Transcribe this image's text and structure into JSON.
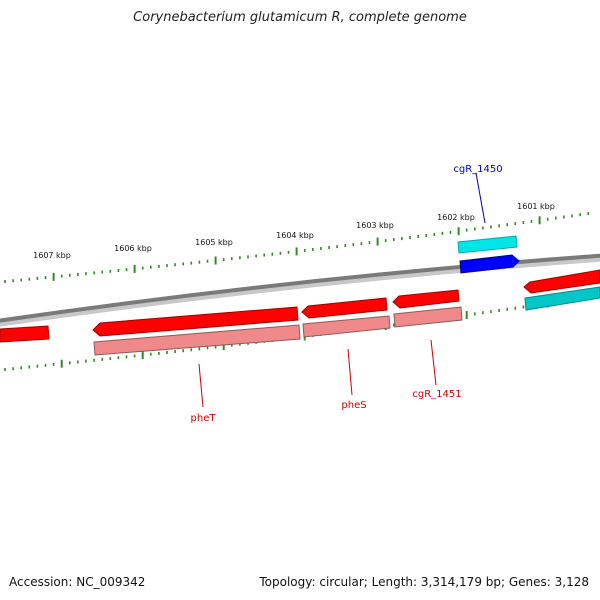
{
  "title": "Corynebacterium glutamicum R, complete genome",
  "scale": {
    "labels": [
      "1607 kbp",
      "1606 kbp",
      "1605 kbp",
      "1604 kbp",
      "1603 kbp",
      "1602 kbp",
      "1601 kbp"
    ]
  },
  "genes": [
    {
      "name": "cgR_1450",
      "strand": "forward",
      "color": "#0000ff",
      "label_color": "#0000c0"
    },
    {
      "name": "cgR_1451",
      "strand": "reverse",
      "color": "#ff0000",
      "label_color": "#cc0000"
    },
    {
      "name": "pheS",
      "strand": "reverse",
      "color": "#ff0000",
      "label_color": "#cc0000"
    },
    {
      "name": "pheT",
      "strand": "reverse",
      "color": "#ff0000",
      "label_color": "#cc0000"
    }
  ],
  "colors": {
    "backbone": "#7a7a7a",
    "tick": "#2e8b22",
    "forward_gene": "#0000ff",
    "forward_shadow": "#00e5e5",
    "reverse_gene": "#ff0000",
    "reverse_shadow": "#f08a8a"
  },
  "footer": {
    "accession": "Accession: NC_009342",
    "summary": "Topology: circular; Length: 3,314,179 bp; Genes: 3,128"
  }
}
